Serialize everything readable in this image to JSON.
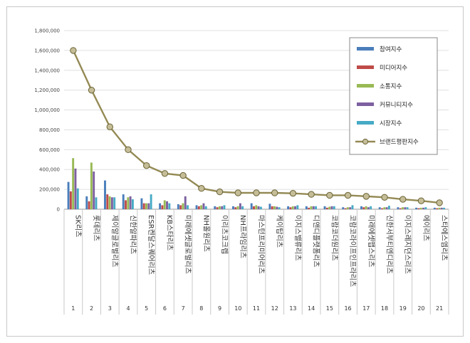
{
  "chart_data": {
    "type": "bar",
    "categories": [
      "SK리츠",
      "롯데리츠",
      "제이알글로벌리츠",
      "신한알파리츠",
      "ESR켄달스퀘어리츠",
      "KB스타리츠",
      "미래에셋글로벌리츠",
      "NH올원리츠",
      "이리츠코크렙",
      "NH프라임리츠",
      "마스턴프리미어리츠",
      "케이탑리츠",
      "이지스밸류리츠",
      "디앤디플랫폼리츠",
      "코람코더원리츠",
      "코람코라이프인프라리츠",
      "미래에셋맵스리츠",
      "신한서부티엔디리츠",
      "이지스레지던스리츠",
      "에이리츠",
      "스타에스엠리츠"
    ],
    "index_labels": [
      "1",
      "2",
      "3",
      "4",
      "5",
      "6",
      "7",
      "8",
      "9",
      "10",
      "11",
      "12",
      "13",
      "14",
      "15",
      "16",
      "17",
      "18",
      "19",
      "20",
      "21"
    ],
    "ylim": [
      0,
      1800000
    ],
    "yticks": [
      "0",
      "200,000",
      "400,000",
      "600,000",
      "800,000",
      "1,000,000",
      "1,200,000",
      "1,400,000",
      "1,600,000",
      "1,800,000"
    ],
    "grid": true,
    "legend_position": "top-right",
    "series": [
      {
        "name": "참여지수",
        "kind": "bar",
        "color": "#4a7ebb",
        "values": [
          275000,
          130000,
          290000,
          150000,
          110000,
          60000,
          50000,
          40000,
          30000,
          30000,
          60000,
          55000,
          30000,
          30000,
          30000,
          20000,
          30000,
          20000,
          20000,
          15000,
          15000
        ]
      },
      {
        "name": "미디어지수",
        "kind": "bar",
        "color": "#be4b48",
        "values": [
          180000,
          80000,
          150000,
          90000,
          60000,
          40000,
          40000,
          30000,
          20000,
          20000,
          30000,
          30000,
          20000,
          15000,
          15000,
          10000,
          20000,
          10000,
          10000,
          10000,
          10000
        ]
      },
      {
        "name": "소통지수",
        "kind": "bar",
        "color": "#98b954",
        "values": [
          515000,
          470000,
          130000,
          120000,
          60000,
          90000,
          60000,
          40000,
          30000,
          30000,
          40000,
          30000,
          30000,
          30000,
          25000,
          20000,
          30000,
          20000,
          20000,
          15000,
          15000
        ]
      },
      {
        "name": "커뮤니티지수",
        "kind": "bar",
        "color": "#7d60a0",
        "values": [
          410000,
          380000,
          120000,
          130000,
          60000,
          80000,
          130000,
          60000,
          30000,
          60000,
          30000,
          25000,
          30000,
          30000,
          30000,
          20000,
          20000,
          20000,
          20000,
          15000,
          15000
        ]
      },
      {
        "name": "시장지수",
        "kind": "bar",
        "color": "#46aac5",
        "values": [
          210000,
          120000,
          120000,
          100000,
          150000,
          60000,
          40000,
          30000,
          40000,
          30000,
          25000,
          20000,
          40000,
          30000,
          30000,
          40000,
          30000,
          35000,
          20000,
          20000,
          15000
        ]
      },
      {
        "name": "브랜드평판지수",
        "kind": "line",
        "color": "#948a54",
        "values": [
          1600000,
          1200000,
          830000,
          600000,
          440000,
          360000,
          340000,
          210000,
          175000,
          165000,
          165000,
          165000,
          160000,
          150000,
          140000,
          140000,
          130000,
          120000,
          100000,
          85000,
          65000
        ]
      }
    ]
  }
}
